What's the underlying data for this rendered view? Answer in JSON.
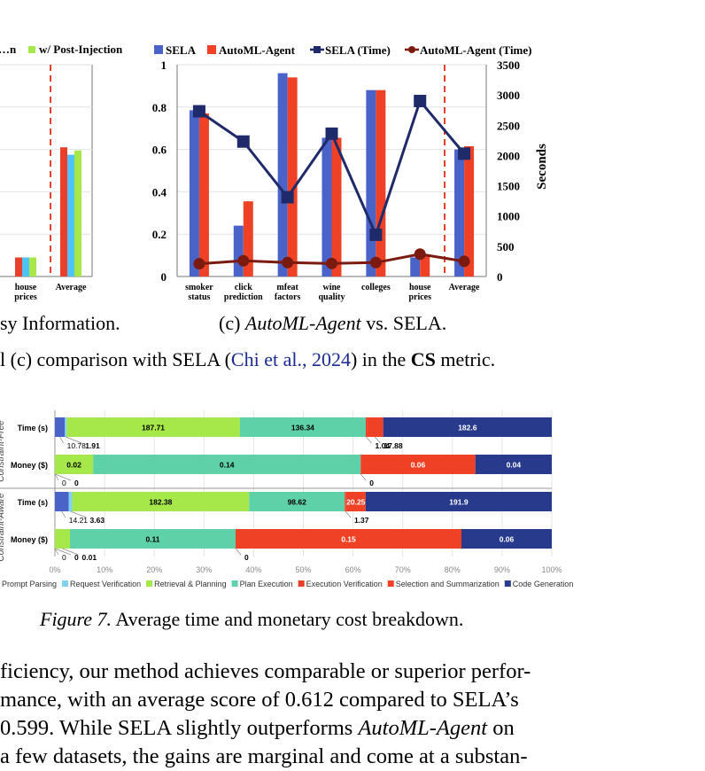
{
  "chart_data": [
    {
      "type": "bar",
      "note_partial": "left chart cropped at image edge",
      "legend": [
        "…n",
        "w/ Post-Injection"
      ],
      "categories": [
        "house prices",
        "Average"
      ],
      "series": [
        {
          "name": "",
          "color": "#e8402a",
          "values": [
            0.09,
            0.61
          ]
        },
        {
          "name": "",
          "color": "#4fc3f7",
          "values": [
            0.09,
            0.575
          ]
        },
        {
          "name": "w/ Post-Injection",
          "color": "#a6e84a",
          "values": [
            0.09,
            0.595
          ]
        }
      ],
      "ylim": [
        0,
        1
      ]
    },
    {
      "type": "bar",
      "categories": [
        "smoker status",
        "click prediction",
        "mfeat factors",
        "wine quality",
        "colleges",
        "house prices",
        "Average"
      ],
      "series": [
        {
          "name": "SELA",
          "color": "#4a63c8",
          "values": [
            0.785,
            0.24,
            0.96,
            0.655,
            0.88,
            0.09,
            0.6
          ]
        },
        {
          "name": "AutoML-Agent",
          "color": "#ef4126",
          "values": [
            0.77,
            0.355,
            0.94,
            0.655,
            0.88,
            0.1,
            0.615
          ]
        }
      ],
      "line_series": [
        {
          "name": "SELA (Time)",
          "color": "#1f2a6b",
          "marker": "square",
          "values": [
            2730,
            2230,
            1310,
            2360,
            690,
            2900,
            2030
          ]
        },
        {
          "name": "AutoML-Agent (Time)",
          "color": "#7b1a0f",
          "marker": "circle",
          "values": [
            210,
            260,
            230,
            215,
            230,
            370,
            250
          ]
        }
      ],
      "ylim": [
        0,
        1
      ],
      "y2lim": [
        0,
        3500
      ],
      "y_ticks": [
        "0",
        "0.2",
        "0.4",
        "0.6",
        "0.8",
        "1"
      ],
      "y2_ticks": [
        "0",
        "500",
        "1000",
        "1500",
        "2000",
        "2500",
        "3000",
        "3500"
      ],
      "y2label": "Seconds"
    },
    {
      "type": "bar",
      "orientation": "horizontal-stacked-percent",
      "group_labels": [
        "Constraint-Free",
        "Constraint-Aware"
      ],
      "x_ticks": [
        "0%",
        "10%",
        "20%",
        "30%",
        "40%",
        "50%",
        "60%",
        "70%",
        "80%",
        "90%",
        "100%"
      ],
      "legend": [
        "Prompt Parsing",
        "Request Verification",
        "Retrieval & Planning",
        "Plan Execution",
        "Execution Verification",
        "Selection and Summarization",
        "Code Generation"
      ],
      "colors": [
        "#4a63c8",
        "#7fd2f2",
        "#a6e84a",
        "#5fd1a8",
        "#e8402a",
        "#ef4126",
        "#283a8c"
      ],
      "rows": [
        {
          "label": "Time (s)",
          "values": [
            10.78,
            1.91,
            187.71,
            136.34,
            1.04,
            17.88,
            182.6
          ],
          "labels": [
            "10.78",
            "1.91",
            "187.71",
            "136.34",
            "1.04",
            "17.88",
            "182.6"
          ]
        },
        {
          "label": "Money ($)",
          "values": [
            0,
            0,
            0.02,
            0.14,
            0,
            0.06,
            0.04
          ],
          "labels": [
            "0",
            "0",
            "0.02",
            "0.14",
            "0",
            "0.06",
            "0.04"
          ]
        },
        {
          "label": "Time (s)",
          "values": [
            14.21,
            3.63,
            182.38,
            98.62,
            1.37,
            20.25,
            191.9
          ],
          "labels": [
            "14.21",
            "3.63",
            "182.38",
            "98.62",
            "1.37",
            "20.25",
            "191.9"
          ]
        },
        {
          "label": "Money ($)",
          "values": [
            0,
            0,
            0.01,
            0.11,
            0,
            0.15,
            0.06
          ],
          "labels": [
            "0",
            "0",
            "0.01",
            "0.11",
            "0",
            "0.15",
            "0.06"
          ]
        }
      ]
    }
  ],
  "captions": {
    "sub_b": "sy Information.",
    "sub_c_prefix": "(c) ",
    "sub_c_italic": "AutoML-Agent",
    "sub_c_suffix": " vs. SELA.",
    "fig6_a": "l (c) comparison with SELA (",
    "fig6_cite1": "Chi et al.",
    "fig6_comma": ", ",
    "fig6_cite2": "2024",
    "fig6_b": ") in the ",
    "fig6_bold": "CS",
    "fig6_c": " metric.",
    "fig7_label": "Figure 7.",
    "fig7_text": " Average time and monetary cost breakdown."
  },
  "body_lines": [
    {
      "pre": "ficiency, our method achieves comparable or superior perfor-"
    },
    {
      "pre": "mance, with an average score of 0.612 compared to SELA’s"
    },
    {
      "pre": "0.599. While SELA slightly outperforms ",
      "em": "AutoML-Agent",
      "post": " on"
    },
    {
      "pre": "a few datasets, the gains are marginal and come at a substan-"
    }
  ]
}
